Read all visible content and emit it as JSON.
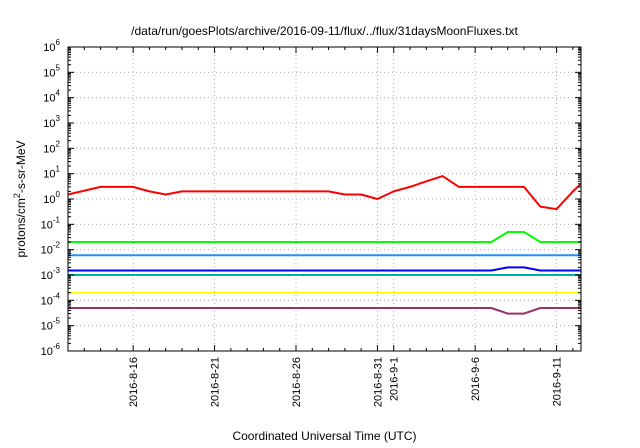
{
  "chart_data": {
    "type": "line",
    "title": "/data/run/goesPlots/archive/2016-09-11/flux/../flux/31daysMoonFluxes.txt",
    "xlabel": "Coordinated Universal Time (UTC)",
    "ylabel": "protons/cm2-s-sr-MeV",
    "ylabel_parts": {
      "pre": "protons/cm",
      "sup": "2",
      "post": "-s-sr-MeV"
    },
    "y_scale": "log",
    "ylim": [
      1e-06,
      1000000.0
    ],
    "xlim_days": [
      -4,
      27.5
    ],
    "x_date_origin": "2016-08-16",
    "grid": true,
    "y_ticks": [
      {
        "value": -6,
        "base": "10",
        "exp": "-6"
      },
      {
        "value": -5,
        "base": "10",
        "exp": "-5"
      },
      {
        "value": -4,
        "base": "10",
        "exp": "-4"
      },
      {
        "value": -3,
        "base": "10",
        "exp": "-3"
      },
      {
        "value": -2,
        "base": "10",
        "exp": "-2"
      },
      {
        "value": -1,
        "base": "10",
        "exp": "-1"
      },
      {
        "value": 0,
        "base": "10",
        "exp": "0"
      },
      {
        "value": 1,
        "base": "10",
        "exp": "1"
      },
      {
        "value": 2,
        "base": "10",
        "exp": "2"
      },
      {
        "value": 3,
        "base": "10",
        "exp": "3"
      },
      {
        "value": 4,
        "base": "10",
        "exp": "4"
      },
      {
        "value": 5,
        "base": "10",
        "exp": "5"
      },
      {
        "value": 6,
        "base": "10",
        "exp": "6"
      }
    ],
    "x_ticks": [
      {
        "day": 0,
        "label": "2016-8-16"
      },
      {
        "day": 5,
        "label": "2016-8-21"
      },
      {
        "day": 10,
        "label": "2016-8-26"
      },
      {
        "day": 15,
        "label": "2016-8-31"
      },
      {
        "day": 16,
        "label": "2016-9-1"
      },
      {
        "day": 21,
        "label": "2016-9-6"
      },
      {
        "day": 26,
        "label": "2016-9-11"
      }
    ],
    "series": [
      {
        "color": "#ff0000",
        "x": [
          -4,
          -2,
          0,
          1,
          2,
          3,
          4,
          5,
          6,
          7,
          8,
          9,
          10,
          11,
          12,
          13,
          14,
          15,
          16,
          17,
          18,
          19,
          20,
          21,
          22,
          23,
          24,
          25,
          26,
          27,
          27.5
        ],
        "y": [
          1.5,
          3,
          3,
          2,
          1.5,
          2,
          2,
          2,
          2,
          2,
          2,
          2,
          2,
          2,
          2,
          1.5,
          1.5,
          1,
          2,
          3,
          5,
          8,
          3,
          3,
          3,
          3,
          3,
          0.5,
          0.4,
          2,
          4
        ]
      },
      {
        "color": "#00ff00",
        "x": [
          -4,
          -2,
          0,
          2,
          4,
          6,
          8,
          10,
          12,
          14,
          16,
          18,
          20,
          22,
          23,
          24,
          25,
          26,
          27,
          27.5
        ],
        "y": [
          0.02,
          0.02,
          0.02,
          0.02,
          0.02,
          0.02,
          0.02,
          0.02,
          0.02,
          0.02,
          0.02,
          0.02,
          0.02,
          0.02,
          0.05,
          0.05,
          0.02,
          0.02,
          0.02,
          0.02
        ]
      },
      {
        "color": "#1e90ff",
        "x": [
          -4,
          -2,
          0,
          2,
          4,
          6,
          8,
          10,
          12,
          14,
          16,
          18,
          20,
          22,
          23,
          24,
          25,
          26,
          27,
          27.5
        ],
        "y": [
          0.006,
          0.006,
          0.006,
          0.006,
          0.006,
          0.006,
          0.006,
          0.006,
          0.006,
          0.006,
          0.006,
          0.006,
          0.006,
          0.006,
          0.006,
          0.006,
          0.006,
          0.006,
          0.006,
          0.006
        ]
      },
      {
        "color": "#0000ff",
        "x": [
          -4,
          -2,
          0,
          2,
          4,
          6,
          8,
          10,
          12,
          14,
          16,
          18,
          20,
          22,
          23,
          24,
          25,
          26,
          27,
          27.5
        ],
        "y": [
          0.0015,
          0.0015,
          0.0015,
          0.0015,
          0.0015,
          0.0015,
          0.0015,
          0.0015,
          0.0015,
          0.0015,
          0.0015,
          0.0015,
          0.0015,
          0.0015,
          0.002,
          0.002,
          0.0015,
          0.0015,
          0.0015,
          0.0015
        ]
      },
      {
        "color": "#00b0a0",
        "x": [
          -4,
          -2,
          0,
          2,
          4,
          6,
          8,
          10,
          12,
          14,
          16,
          18,
          20,
          22,
          23,
          24,
          25,
          26,
          27,
          27.5
        ],
        "y": [
          0.001,
          0.001,
          0.001,
          0.001,
          0.001,
          0.001,
          0.001,
          0.001,
          0.001,
          0.001,
          0.001,
          0.001,
          0.001,
          0.001,
          0.001,
          0.001,
          0.001,
          0.001,
          0.001,
          0.001
        ]
      },
      {
        "color": "#ffff00",
        "x": [
          -4,
          -2,
          0,
          2,
          4,
          6,
          8,
          10,
          12,
          14,
          16,
          18,
          20,
          22,
          23,
          24,
          25,
          26,
          27,
          27.5
        ],
        "y": [
          0.0002,
          0.0002,
          0.0002,
          0.0002,
          0.0002,
          0.0002,
          0.0002,
          0.0002,
          0.0002,
          0.0002,
          0.0002,
          0.0002,
          0.0002,
          0.0002,
          0.0002,
          0.0002,
          0.0002,
          0.0002,
          0.0002,
          0.0002
        ]
      },
      {
        "color": "#993366",
        "x": [
          -4,
          -2,
          0,
          2,
          4,
          6,
          8,
          10,
          12,
          14,
          16,
          18,
          20,
          22,
          23,
          24,
          25,
          26,
          27,
          27.5
        ],
        "y": [
          5e-05,
          5e-05,
          5e-05,
          5e-05,
          5e-05,
          5e-05,
          5e-05,
          5e-05,
          5e-05,
          5e-05,
          5e-05,
          5e-05,
          5e-05,
          5e-05,
          3e-05,
          3e-05,
          5e-05,
          5e-05,
          5e-05,
          5e-05
        ]
      }
    ]
  }
}
